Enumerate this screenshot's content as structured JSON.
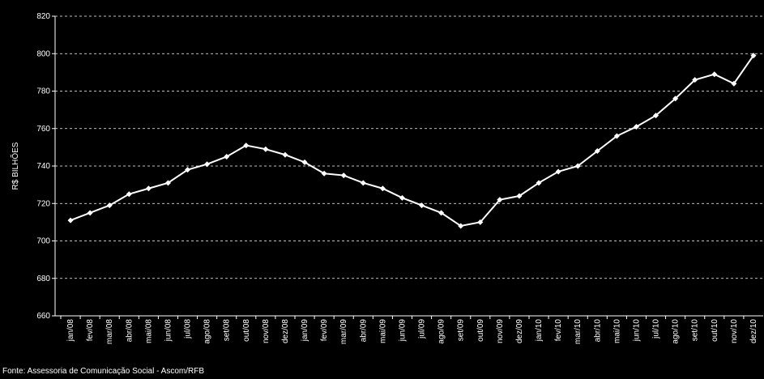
{
  "chart_data": {
    "type": "line",
    "y_label": "R$ BILHÕES",
    "source": "Fonte: Assessoria de Comunicação Social - Ascom/RFB",
    "categories": [
      "jan/08",
      "fev/08",
      "mar/08",
      "abr/08",
      "mai/08",
      "jun/08",
      "jul/08",
      "ago/08",
      "set/08",
      "out/08",
      "nov/08",
      "dez/08",
      "jan/09",
      "fev/09",
      "mar/09",
      "abr/09",
      "mai/09",
      "jun/09",
      "jul/09",
      "ago/09",
      "set/09",
      "out/09",
      "nov/09",
      "dez/09",
      "jan/10",
      "fev/10",
      "mar/10",
      "abr/10",
      "mai/10",
      "jun/10",
      "jul/10",
      "ago/10",
      "set/10",
      "out/10",
      "nov/10",
      "dez/10"
    ],
    "values": [
      711,
      715,
      719,
      725,
      728,
      731,
      738,
      741,
      745,
      751,
      749,
      746,
      742,
      736,
      735,
      731,
      728,
      723,
      719,
      715,
      708,
      710,
      722,
      724,
      731,
      737,
      740,
      748,
      756,
      761,
      767,
      776,
      786,
      789,
      784,
      799
    ],
    "color": "#ffffff",
    "ylim": [
      660,
      820
    ],
    "yticks": [
      660,
      680,
      700,
      720,
      740,
      760,
      780,
      800,
      820
    ],
    "grid": true
  }
}
